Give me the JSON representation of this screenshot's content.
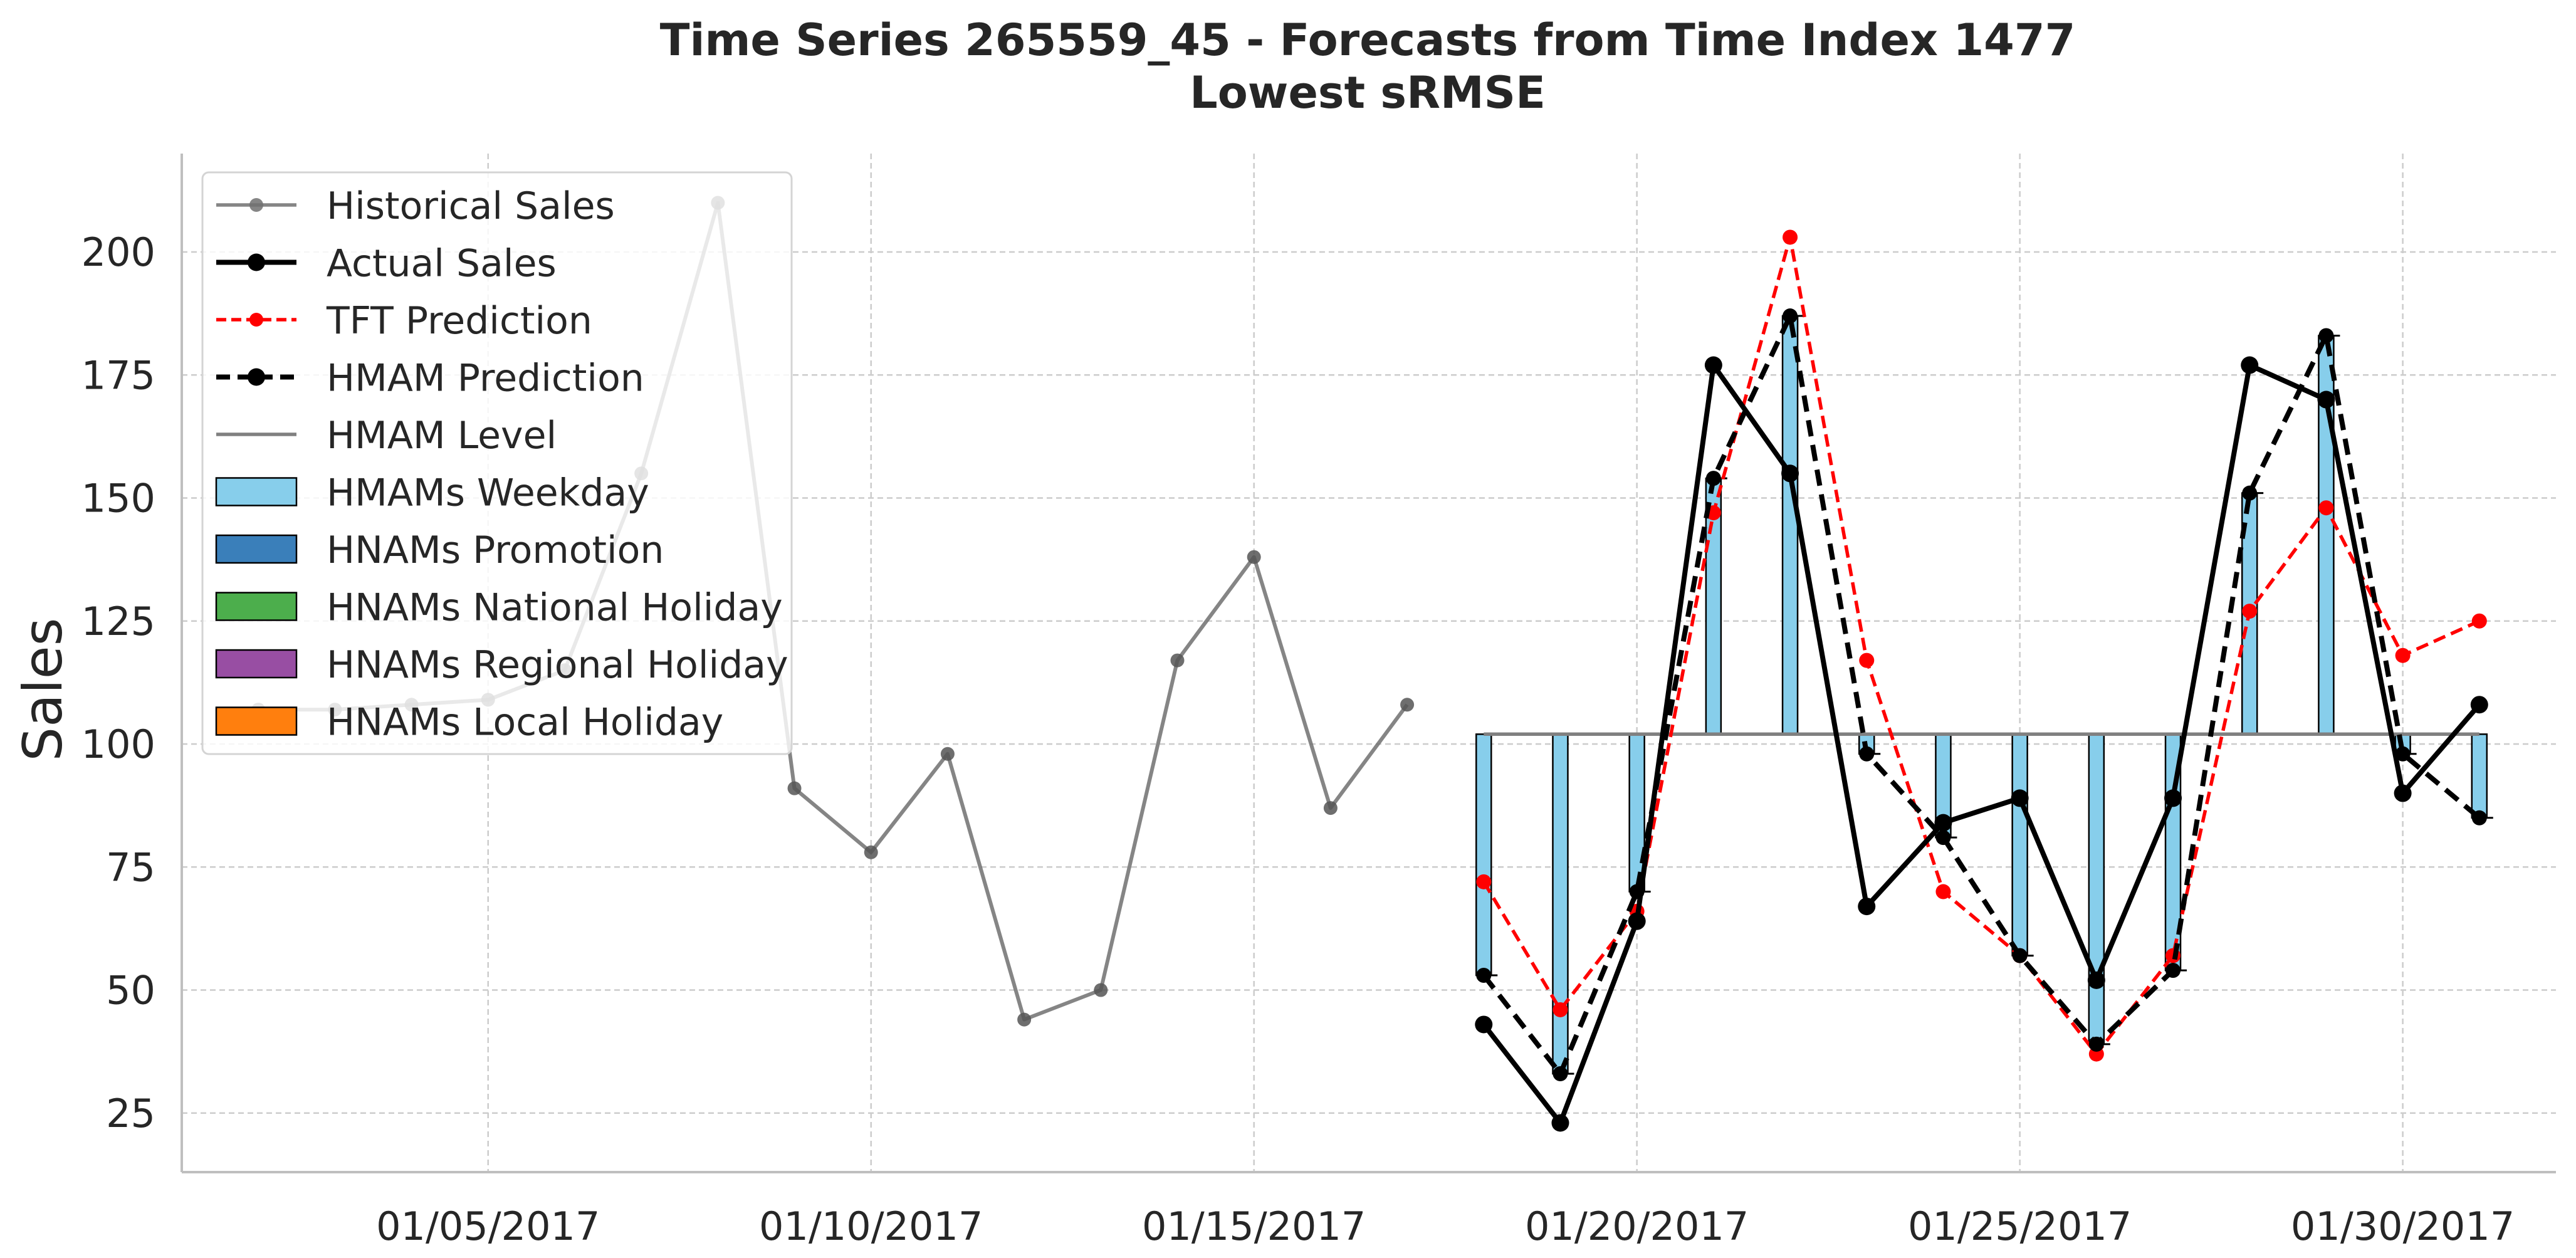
{
  "chart_data": {
    "type": "line",
    "title": "Time Series 265559_45 - Forecasts from Time Index 1477",
    "subtitle": "Lowest sRMSE",
    "ylabel": "Sales",
    "xlabel": "",
    "grid": true,
    "legend_position": "top-left",
    "ylim": [
      13,
      220
    ],
    "xlim": [
      "2017-01-01",
      "2017-02-01"
    ],
    "x_tick_labels": [
      "01/05/2017",
      "01/10/2017",
      "01/15/2017",
      "01/20/2017",
      "01/25/2017",
      "01/30/2017"
    ],
    "x_tick_dates": [
      "2017-01-05",
      "2017-01-10",
      "2017-01-15",
      "2017-01-20",
      "2017-01-25",
      "2017-01-30"
    ],
    "y_ticks": [
      25,
      50,
      75,
      100,
      125,
      150,
      175,
      200
    ],
    "hmam_level": 102,
    "series": [
      {
        "name": "Historical Sales",
        "color": "#707070",
        "style": "solid-marker",
        "x": [
          "2017-01-02",
          "2017-01-03",
          "2017-01-04",
          "2017-01-05",
          "2017-01-06",
          "2017-01-07",
          "2017-01-08",
          "2017-01-09",
          "2017-01-10",
          "2017-01-11",
          "2017-01-12",
          "2017-01-13",
          "2017-01-14",
          "2017-01-15",
          "2017-01-16",
          "2017-01-17"
        ],
        "values": [
          107,
          107,
          108,
          109,
          115,
          155,
          210,
          91,
          78,
          98,
          44,
          50,
          117,
          138,
          87,
          108
        ]
      },
      {
        "name": "Actual Sales",
        "color": "#000000",
        "style": "solid-bold-marker",
        "x": [
          "2017-01-18",
          "2017-01-19",
          "2017-01-20",
          "2017-01-21",
          "2017-01-22",
          "2017-01-23",
          "2017-01-24",
          "2017-01-25",
          "2017-01-26",
          "2017-01-27",
          "2017-01-28",
          "2017-01-29",
          "2017-01-30",
          "2017-01-31"
        ],
        "values": [
          43,
          23,
          64,
          177,
          155,
          67,
          84,
          89,
          52,
          89,
          177,
          170,
          90,
          108
        ]
      },
      {
        "name": "TFT Prediction",
        "color": "#ff0000",
        "style": "dashed-marker",
        "x": [
          "2017-01-18",
          "2017-01-19",
          "2017-01-20",
          "2017-01-21",
          "2017-01-22",
          "2017-01-23",
          "2017-01-24",
          "2017-01-25",
          "2017-01-26",
          "2017-01-27",
          "2017-01-28",
          "2017-01-29",
          "2017-01-30",
          "2017-01-31"
        ],
        "values": [
          72,
          46,
          66,
          147,
          203,
          117,
          70,
          57,
          37,
          57,
          127,
          148,
          118,
          125
        ]
      },
      {
        "name": "HMAM Prediction",
        "color": "#000000",
        "style": "dashed-bold-marker",
        "x": [
          "2017-01-18",
          "2017-01-19",
          "2017-01-20",
          "2017-01-21",
          "2017-01-22",
          "2017-01-23",
          "2017-01-24",
          "2017-01-25",
          "2017-01-26",
          "2017-01-27",
          "2017-01-28",
          "2017-01-29",
          "2017-01-30",
          "2017-01-31"
        ],
        "values": [
          53,
          33,
          70,
          154,
          187,
          98,
          81,
          57,
          39,
          54,
          151,
          183,
          98,
          85
        ]
      },
      {
        "name": "HMAM Level",
        "color": "#808080",
        "style": "solid",
        "x": [
          "2017-01-18",
          "2017-01-31"
        ],
        "values": [
          102,
          102
        ]
      }
    ],
    "bars": {
      "name": "HMAMs Weekday",
      "color": "#87ceeb",
      "edge_color": "#000000",
      "baseline": 102,
      "x": [
        "2017-01-18",
        "2017-01-19",
        "2017-01-20",
        "2017-01-21",
        "2017-01-22",
        "2017-01-23",
        "2017-01-24",
        "2017-01-25",
        "2017-01-26",
        "2017-01-27",
        "2017-01-28",
        "2017-01-29",
        "2017-01-30",
        "2017-01-31"
      ],
      "values": [
        53,
        33,
        70,
        154,
        187,
        98,
        81,
        57,
        39,
        54,
        151,
        183,
        98,
        85
      ]
    },
    "legend": [
      {
        "label": "Historical Sales",
        "kind": "line",
        "color": "#707070",
        "dash": false,
        "bold": false
      },
      {
        "label": "Actual Sales",
        "kind": "line",
        "color": "#000000",
        "dash": false,
        "bold": true
      },
      {
        "label": "TFT Prediction",
        "kind": "line",
        "color": "#ff0000",
        "dash": true,
        "bold": false
      },
      {
        "label": "HMAM Prediction",
        "kind": "line",
        "color": "#000000",
        "dash": true,
        "bold": true
      },
      {
        "label": "HMAM Level",
        "kind": "plainline",
        "color": "#808080",
        "dash": false,
        "bold": false
      },
      {
        "label": "HMAMs Weekday",
        "kind": "patch",
        "color": "#87ceeb"
      },
      {
        "label": "HNAMs Promotion",
        "kind": "patch",
        "color": "#3a7fba"
      },
      {
        "label": "HNAMs National Holiday",
        "kind": "patch",
        "color": "#4cae4c"
      },
      {
        "label": "HNAMs Regional Holiday",
        "kind": "patch",
        "color": "#984ea3"
      },
      {
        "label": "HNAMs Local Holiday",
        "kind": "patch",
        "color": "#ff7f0e"
      }
    ]
  }
}
